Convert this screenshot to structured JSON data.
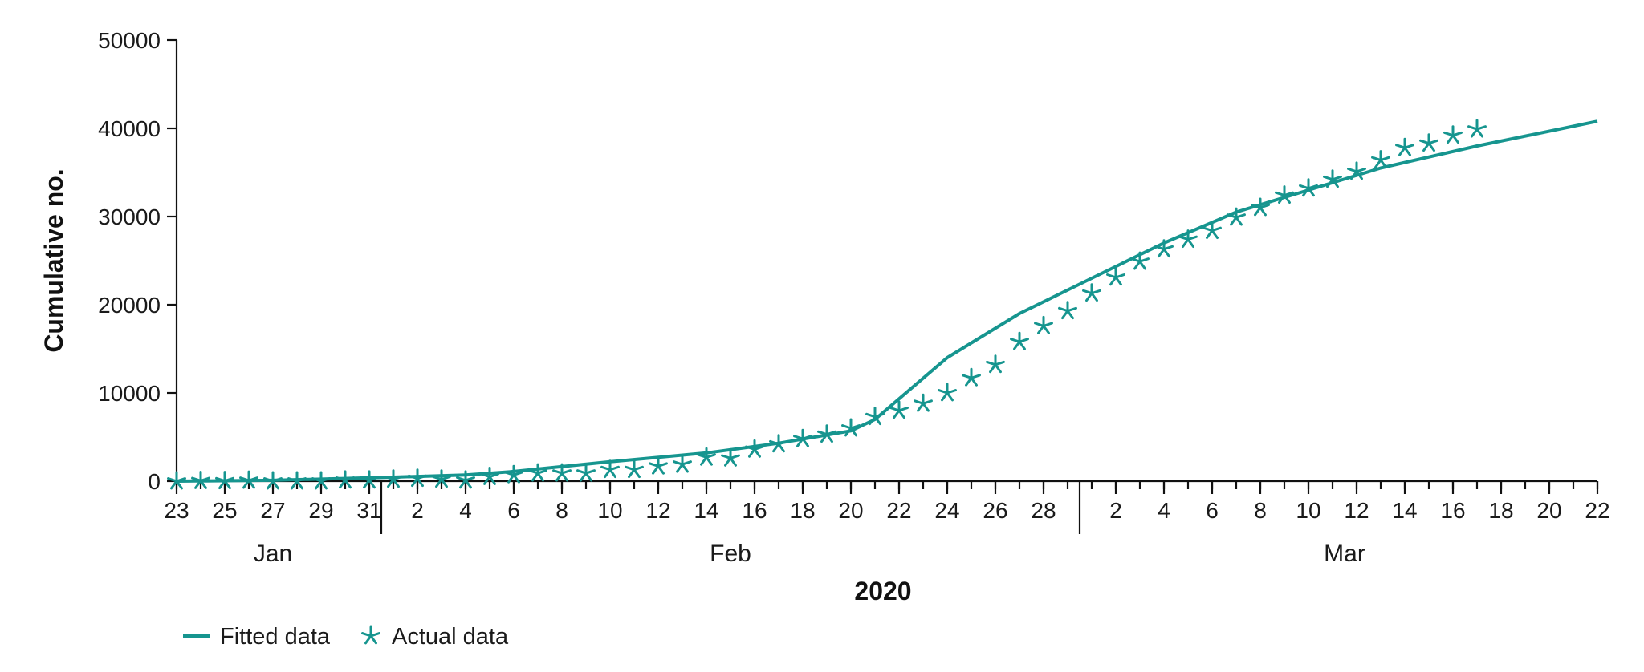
{
  "chart_data": {
    "type": "line",
    "title": "",
    "xlabel": "2020",
    "ylabel": "Cumulative no.",
    "ylim": [
      0,
      50000
    ],
    "yticks": [
      0,
      10000,
      20000,
      30000,
      40000,
      50000
    ],
    "ytick_labels": [
      "0",
      "10000",
      "20000",
      "30000",
      "40000",
      "50000"
    ],
    "xlim": [
      "2020-01-23",
      "2020-03-22"
    ],
    "xtick_labels": [
      {
        "date": "2020-01-23",
        "label": "23"
      },
      {
        "date": "2020-01-25",
        "label": "25"
      },
      {
        "date": "2020-01-27",
        "label": "27"
      },
      {
        "date": "2020-01-29",
        "label": "29"
      },
      {
        "date": "2020-01-31",
        "label": "31"
      },
      {
        "date": "2020-02-02",
        "label": "2"
      },
      {
        "date": "2020-02-04",
        "label": "4"
      },
      {
        "date": "2020-02-06",
        "label": "6"
      },
      {
        "date": "2020-02-08",
        "label": "8"
      },
      {
        "date": "2020-02-10",
        "label": "10"
      },
      {
        "date": "2020-02-12",
        "label": "12"
      },
      {
        "date": "2020-02-14",
        "label": "14"
      },
      {
        "date": "2020-02-16",
        "label": "16"
      },
      {
        "date": "2020-02-18",
        "label": "18"
      },
      {
        "date": "2020-02-20",
        "label": "20"
      },
      {
        "date": "2020-02-22",
        "label": "22"
      },
      {
        "date": "2020-02-24",
        "label": "24"
      },
      {
        "date": "2020-02-26",
        "label": "26"
      },
      {
        "date": "2020-02-28",
        "label": "28"
      },
      {
        "date": "2020-03-02",
        "label": "2"
      },
      {
        "date": "2020-03-04",
        "label": "4"
      },
      {
        "date": "2020-03-06",
        "label": "6"
      },
      {
        "date": "2020-03-08",
        "label": "8"
      },
      {
        "date": "2020-03-10",
        "label": "10"
      },
      {
        "date": "2020-03-12",
        "label": "12"
      },
      {
        "date": "2020-03-14",
        "label": "14"
      },
      {
        "date": "2020-03-16",
        "label": "16"
      },
      {
        "date": "2020-03-18",
        "label": "18"
      },
      {
        "date": "2020-03-20",
        "label": "20"
      },
      {
        "date": "2020-03-22",
        "label": "22"
      }
    ],
    "months": [
      {
        "label": "Jan",
        "start": "2020-01-23",
        "end": "2020-01-31"
      },
      {
        "label": "Feb",
        "start": "2020-02-01",
        "end": "2020-02-29"
      },
      {
        "label": "Mar",
        "start": "2020-03-01",
        "end": "2020-03-22"
      }
    ],
    "grid": false,
    "legend": "bottom-left",
    "color": "#16958f",
    "series": [
      {
        "name": "Fitted data",
        "style": "line",
        "x": [
          "2020-01-23",
          "2020-01-27",
          "2020-02-01",
          "2020-02-04",
          "2020-02-06",
          "2020-02-10",
          "2020-02-14",
          "2020-02-17",
          "2020-02-20",
          "2020-02-21",
          "2020-02-24",
          "2020-02-27",
          "2020-03-01",
          "2020-03-04",
          "2020-03-07",
          "2020-03-10",
          "2020-03-13",
          "2020-03-17",
          "2020-03-22"
        ],
        "y": [
          0,
          100,
          450,
          700,
          1100,
          2200,
          3200,
          4300,
          5700,
          7000,
          14000,
          19000,
          23000,
          27000,
          30500,
          33000,
          35500,
          38000,
          40800
        ]
      },
      {
        "name": "Actual data",
        "style": "marker-asterisk",
        "x": [
          "2020-01-23",
          "2020-01-24",
          "2020-01-25",
          "2020-01-26",
          "2020-01-27",
          "2020-01-28",
          "2020-01-29",
          "2020-01-30",
          "2020-01-31",
          "2020-02-01",
          "2020-02-02",
          "2020-02-03",
          "2020-02-04",
          "2020-02-05",
          "2020-02-06",
          "2020-02-07",
          "2020-02-08",
          "2020-02-09",
          "2020-02-10",
          "2020-02-11",
          "2020-02-12",
          "2020-02-13",
          "2020-02-14",
          "2020-02-15",
          "2020-02-16",
          "2020-02-17",
          "2020-02-18",
          "2020-02-19",
          "2020-02-20",
          "2020-02-21",
          "2020-02-22",
          "2020-02-23",
          "2020-02-24",
          "2020-02-25",
          "2020-02-26",
          "2020-02-27",
          "2020-02-28",
          "2020-02-29",
          "2020-03-01",
          "2020-03-02",
          "2020-03-03",
          "2020-03-04",
          "2020-03-05",
          "2020-03-06",
          "2020-03-07",
          "2020-03-08",
          "2020-03-09",
          "2020-03-10",
          "2020-03-11",
          "2020-03-12",
          "2020-03-13",
          "2020-03-14",
          "2020-03-15",
          "2020-03-16",
          "2020-03-17"
        ],
        "y": [
          0,
          50,
          30,
          80,
          0,
          0,
          0,
          100,
          100,
          200,
          300,
          200,
          100,
          500,
          700,
          900,
          900,
          900,
          1300,
          1300,
          1700,
          1900,
          2700,
          2600,
          3600,
          4200,
          4800,
          5300,
          6000,
          7300,
          8000,
          8800,
          10000,
          11700,
          13200,
          15800,
          17600,
          19300,
          21300,
          23100,
          24900,
          26300,
          27400,
          28400,
          29900,
          31000,
          32400,
          33200,
          34200,
          35100,
          36400,
          37800,
          38300,
          39200,
          39900
        ]
      }
    ]
  }
}
